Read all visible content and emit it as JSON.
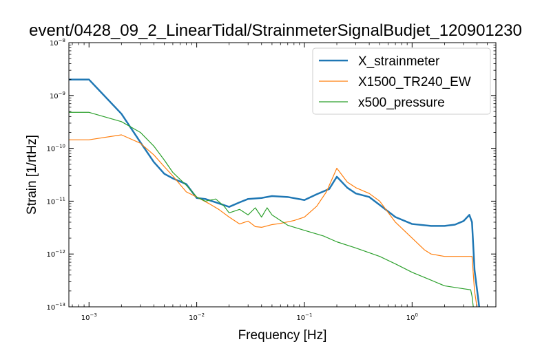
{
  "chart_data": {
    "type": "line",
    "title": "event/0428_09_2_LinearTidal/StrainmeterSignalBudjet_120901230",
    "xlabel": "Frequency [Hz]",
    "ylabel": "Strain [1/rtHz]",
    "xscale": "log",
    "yscale": "log",
    "xlim": [
      0.00065,
      6.0
    ],
    "ylim": [
      1e-13,
      1e-08
    ],
    "xticks": [
      {
        "value": 0.001,
        "base": "10",
        "exp": "−3"
      },
      {
        "value": 0.01,
        "base": "10",
        "exp": "−2"
      },
      {
        "value": 0.1,
        "base": "10",
        "exp": "−1"
      },
      {
        "value": 1,
        "base": "10",
        "exp": "0"
      }
    ],
    "yticks": [
      {
        "value": 1e-13,
        "base": "10",
        "exp": "−13"
      },
      {
        "value": 1e-12,
        "base": "10",
        "exp": "−12"
      },
      {
        "value": 1e-11,
        "base": "10",
        "exp": "−11"
      },
      {
        "value": 1e-10,
        "base": "10",
        "exp": "−10"
      },
      {
        "value": 1e-09,
        "base": "10",
        "exp": "−9"
      },
      {
        "value": 1e-08,
        "base": "10",
        "exp": "−8"
      }
    ],
    "grid": false,
    "legend_position": "top-right",
    "series": [
      {
        "name": "X_strainmeter",
        "color": "#1f77b4",
        "points": [
          [
            0.00065,
            2e-09
          ],
          [
            0.001,
            2e-09
          ],
          [
            0.002,
            4.5e-10
          ],
          [
            0.003,
            1.3e-10
          ],
          [
            0.004,
            5.5e-11
          ],
          [
            0.005,
            3.3e-11
          ],
          [
            0.006,
            2.7e-11
          ],
          [
            0.008,
            2.1e-11
          ],
          [
            0.01,
            1.15e-11
          ],
          [
            0.012,
            1.1e-11
          ],
          [
            0.015,
            9.5e-12
          ],
          [
            0.02,
            7.8e-12
          ],
          [
            0.025,
            9.5e-12
          ],
          [
            0.03,
            1.1e-11
          ],
          [
            0.04,
            1.15e-11
          ],
          [
            0.05,
            1.25e-11
          ],
          [
            0.07,
            1.2e-11
          ],
          [
            0.1,
            1.05e-11
          ],
          [
            0.13,
            1.35e-11
          ],
          [
            0.17,
            1.7e-11
          ],
          [
            0.2,
            2.9e-11
          ],
          [
            0.25,
            1.8e-11
          ],
          [
            0.3,
            1.4e-11
          ],
          [
            0.4,
            1.2e-11
          ],
          [
            0.5,
            8.5e-12
          ],
          [
            0.7,
            5e-12
          ],
          [
            1.0,
            3.7e-12
          ],
          [
            1.5,
            3.4e-12
          ],
          [
            2.0,
            3.4e-12
          ],
          [
            2.5,
            3.6e-12
          ],
          [
            3.0,
            4.2e-12
          ],
          [
            3.4,
            5.5e-12
          ],
          [
            3.6,
            4e-12
          ],
          [
            3.8,
            5e-13
          ],
          [
            4.2,
            1e-13
          ]
        ]
      },
      {
        "name": "X1500_TR240_EW",
        "color": "#ff7f0e",
        "points": [
          [
            0.00065,
            1.45e-10
          ],
          [
            0.001,
            1.45e-10
          ],
          [
            0.002,
            1.8e-10
          ],
          [
            0.003,
            1.25e-10
          ],
          [
            0.004,
            7.5e-11
          ],
          [
            0.005,
            4.5e-11
          ],
          [
            0.006,
            3e-11
          ],
          [
            0.008,
            1.5e-11
          ],
          [
            0.01,
            1.2e-11
          ],
          [
            0.013,
            9e-12
          ],
          [
            0.016,
            7e-12
          ],
          [
            0.02,
            5e-12
          ],
          [
            0.025,
            3.7e-12
          ],
          [
            0.03,
            4.2e-12
          ],
          [
            0.035,
            3.3e-12
          ],
          [
            0.04,
            3.2e-12
          ],
          [
            0.05,
            3.6e-12
          ],
          [
            0.06,
            3.8e-12
          ],
          [
            0.08,
            4.3e-12
          ],
          [
            0.1,
            5e-12
          ],
          [
            0.13,
            8e-12
          ],
          [
            0.16,
            1.5e-11
          ],
          [
            0.2,
            4.2e-11
          ],
          [
            0.25,
            2.3e-11
          ],
          [
            0.3,
            1.8e-11
          ],
          [
            0.4,
            1.4e-11
          ],
          [
            0.5,
            1e-11
          ],
          [
            0.7,
            4e-12
          ],
          [
            1.0,
            2e-12
          ],
          [
            1.3,
            1.2e-12
          ],
          [
            1.5,
            1e-12
          ],
          [
            2.0,
            9e-13
          ],
          [
            3.0,
            9e-13
          ],
          [
            3.6,
            9e-13
          ],
          [
            3.8,
            2e-13
          ],
          [
            4.0,
            1e-13
          ]
        ]
      },
      {
        "name": "x500_pressure",
        "color": "#2ca02c",
        "points": [
          [
            0.00065,
            4.8e-10
          ],
          [
            0.001,
            4.8e-10
          ],
          [
            0.002,
            3.2e-10
          ],
          [
            0.003,
            2e-10
          ],
          [
            0.004,
            1.1e-10
          ],
          [
            0.005,
            6e-11
          ],
          [
            0.006,
            3.5e-11
          ],
          [
            0.008,
            2e-11
          ],
          [
            0.01,
            1.2e-11
          ],
          [
            0.012,
            1e-11
          ],
          [
            0.015,
            1.1e-11
          ],
          [
            0.018,
            8e-12
          ],
          [
            0.02,
            6e-12
          ],
          [
            0.025,
            7e-12
          ],
          [
            0.03,
            5.5e-12
          ],
          [
            0.035,
            7.5e-12
          ],
          [
            0.04,
            5e-12
          ],
          [
            0.045,
            7.5e-12
          ],
          [
            0.05,
            5.5e-12
          ],
          [
            0.07,
            3.5e-12
          ],
          [
            0.1,
            2.8e-12
          ],
          [
            0.15,
            2.2e-12
          ],
          [
            0.2,
            1.7e-12
          ],
          [
            0.3,
            1.3e-12
          ],
          [
            0.5,
            9e-13
          ],
          [
            0.7,
            6.5e-13
          ],
          [
            1.0,
            4.5e-13
          ],
          [
            1.5,
            3.2e-13
          ],
          [
            2.0,
            2.5e-13
          ],
          [
            3.0,
            2.2e-13
          ],
          [
            3.5,
            2.1e-13
          ],
          [
            3.6,
            1.6e-13
          ],
          [
            3.7,
            1e-13
          ]
        ]
      }
    ]
  }
}
